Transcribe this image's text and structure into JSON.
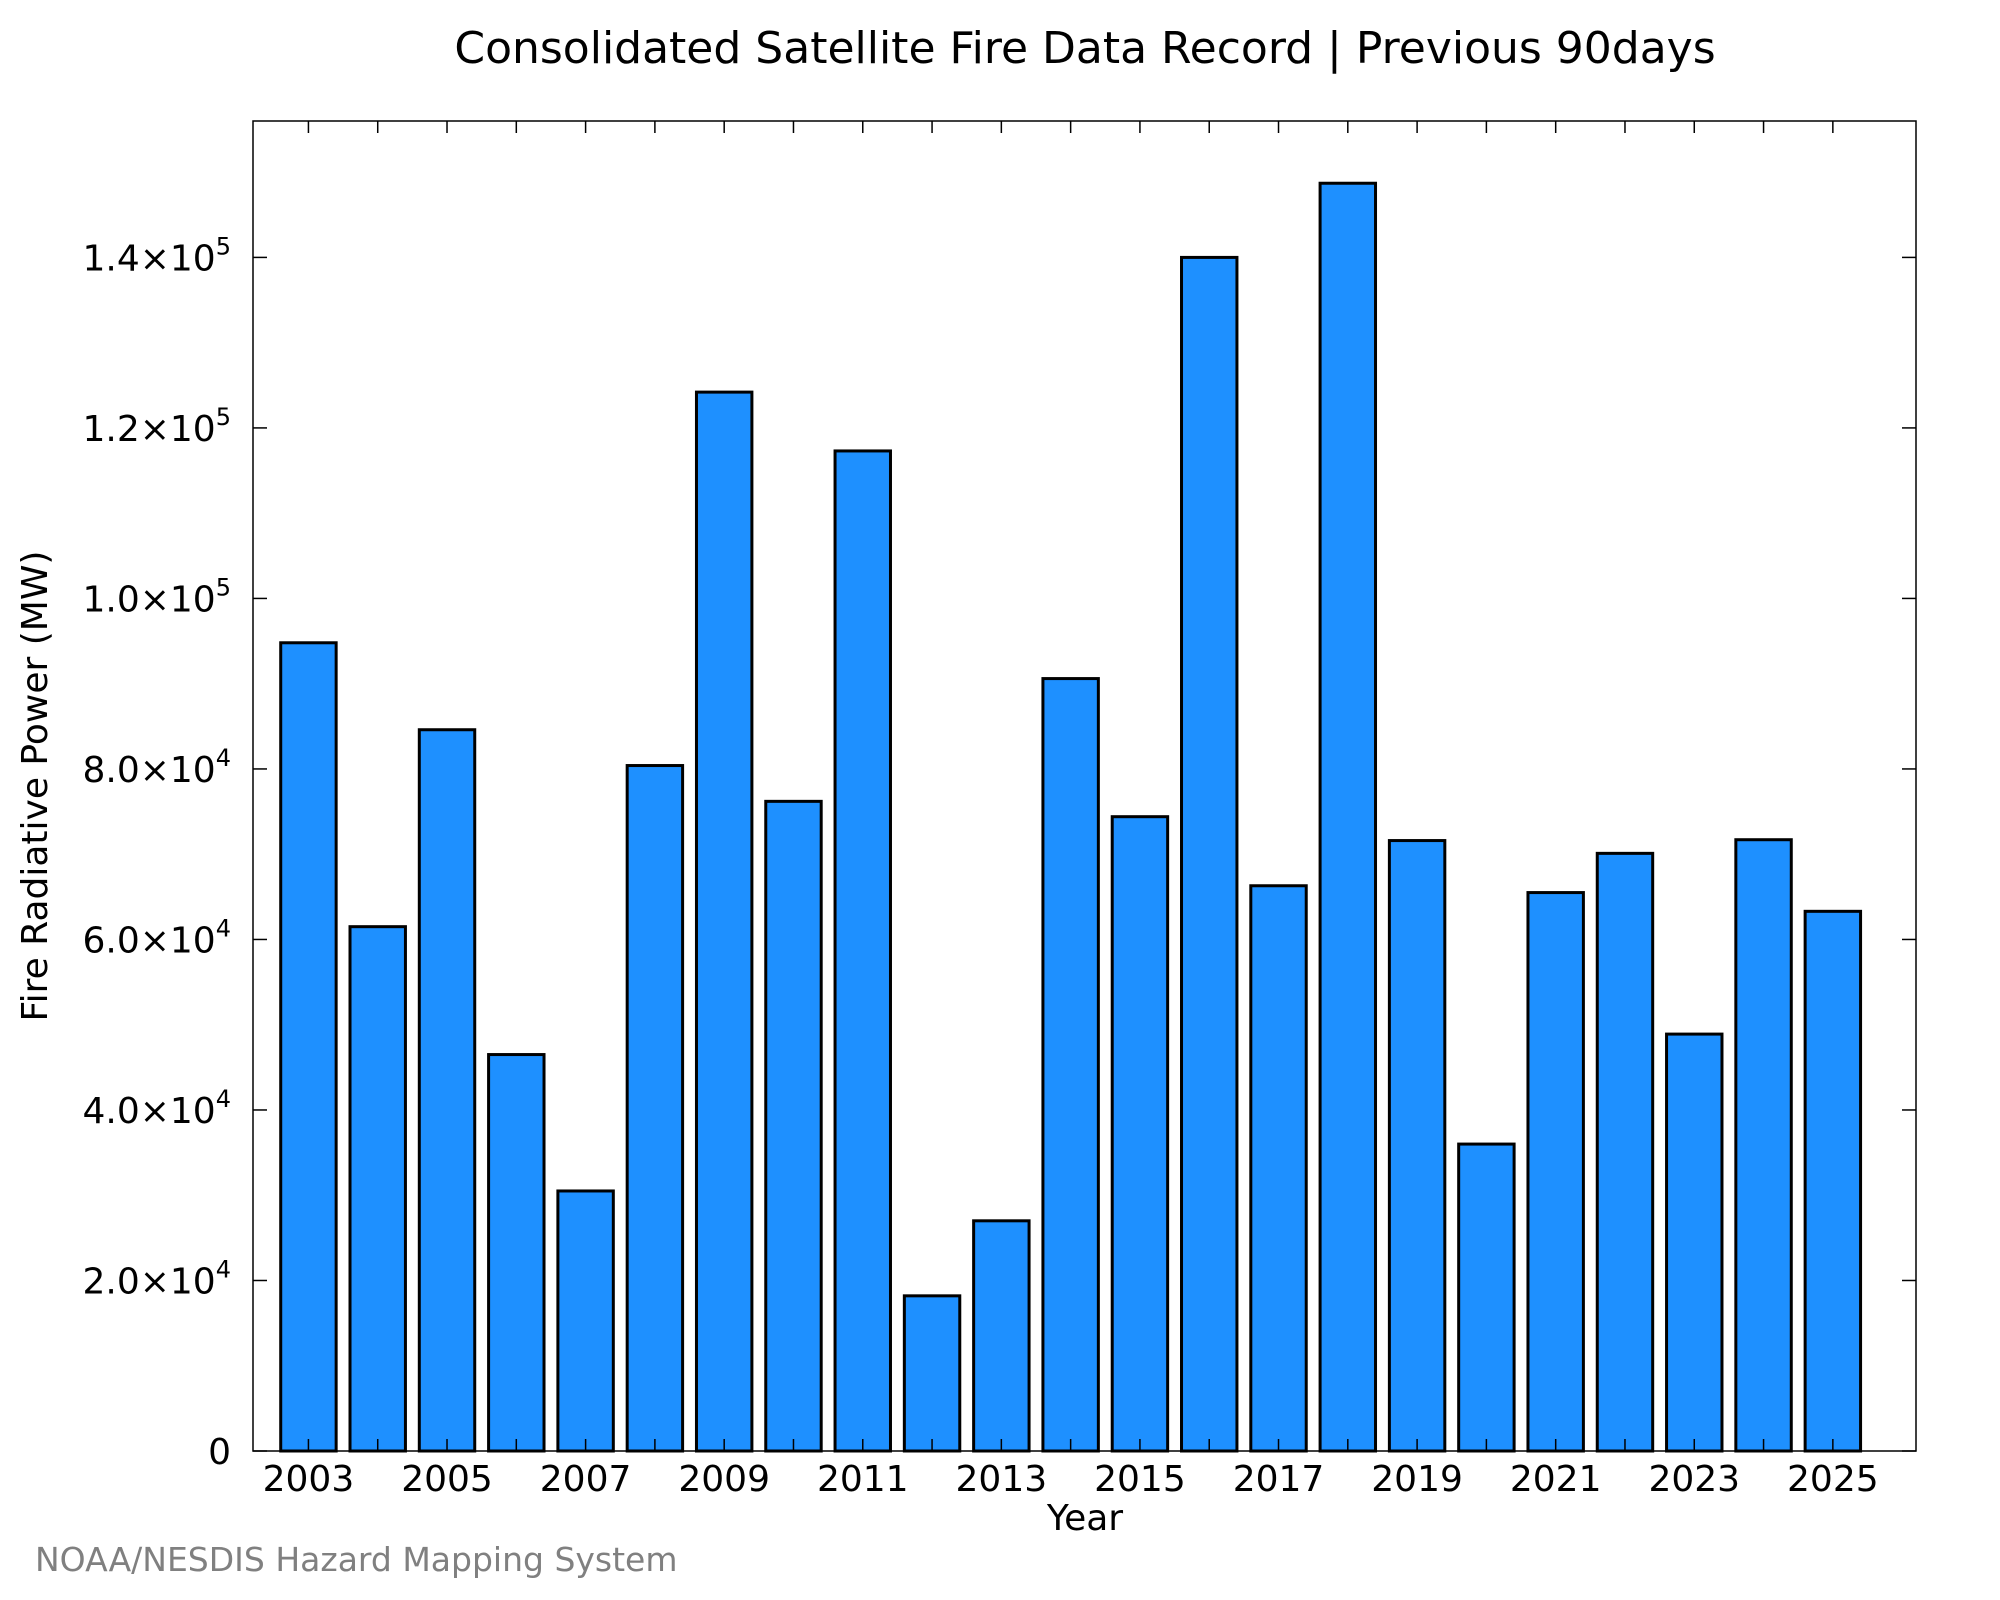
{
  "chart_data": {
    "type": "bar",
    "title": "Consolidated Satellite Fire Data Record | Previous 90days",
    "xlabel": "Year",
    "ylabel": "Fire Radiative Power (MW)",
    "categories": [
      "2003",
      "2004",
      "2005",
      "2006",
      "2007",
      "2008",
      "2009",
      "2010",
      "2011",
      "2012",
      "2013",
      "2014",
      "2015",
      "2016",
      "2017",
      "2018",
      "2019",
      "2020",
      "2021",
      "2022",
      "2023",
      "2024",
      "2025"
    ],
    "values": [
      94800,
      61500,
      84600,
      46500,
      30500,
      80400,
      124200,
      76200,
      117300,
      18200,
      27000,
      90600,
      74400,
      140000,
      66300,
      148700,
      71600,
      36000,
      65500,
      70100,
      48900,
      71700,
      63300
    ],
    "x_tick_labels": [
      "2003",
      "2005",
      "2007",
      "2009",
      "2011",
      "2013",
      "2015",
      "2017",
      "2019",
      "2021",
      "2023",
      "2025"
    ],
    "y_ticks": [
      {
        "value": 0,
        "mantissa": "0",
        "exponent": ""
      },
      {
        "value": 20000,
        "mantissa": "2.0×10",
        "exponent": "4"
      },
      {
        "value": 40000,
        "mantissa": "4.0×10",
        "exponent": "4"
      },
      {
        "value": 60000,
        "mantissa": "6.0×10",
        "exponent": "4"
      },
      {
        "value": 80000,
        "mantissa": "8.0×10",
        "exponent": "4"
      },
      {
        "value": 100000,
        "mantissa": "1.0×10",
        "exponent": "5"
      },
      {
        "value": 120000,
        "mantissa": "1.2×10",
        "exponent": "5"
      },
      {
        "value": 140000,
        "mantissa": "1.4×10",
        "exponent": "5"
      }
    ],
    "ylim": [
      0,
      156000
    ],
    "bar_color": "#1e90ff",
    "bar_edge_color": "#000000",
    "grid": false,
    "legend": "none"
  },
  "credit": "NOAA/NESDIS Hazard Mapping System"
}
